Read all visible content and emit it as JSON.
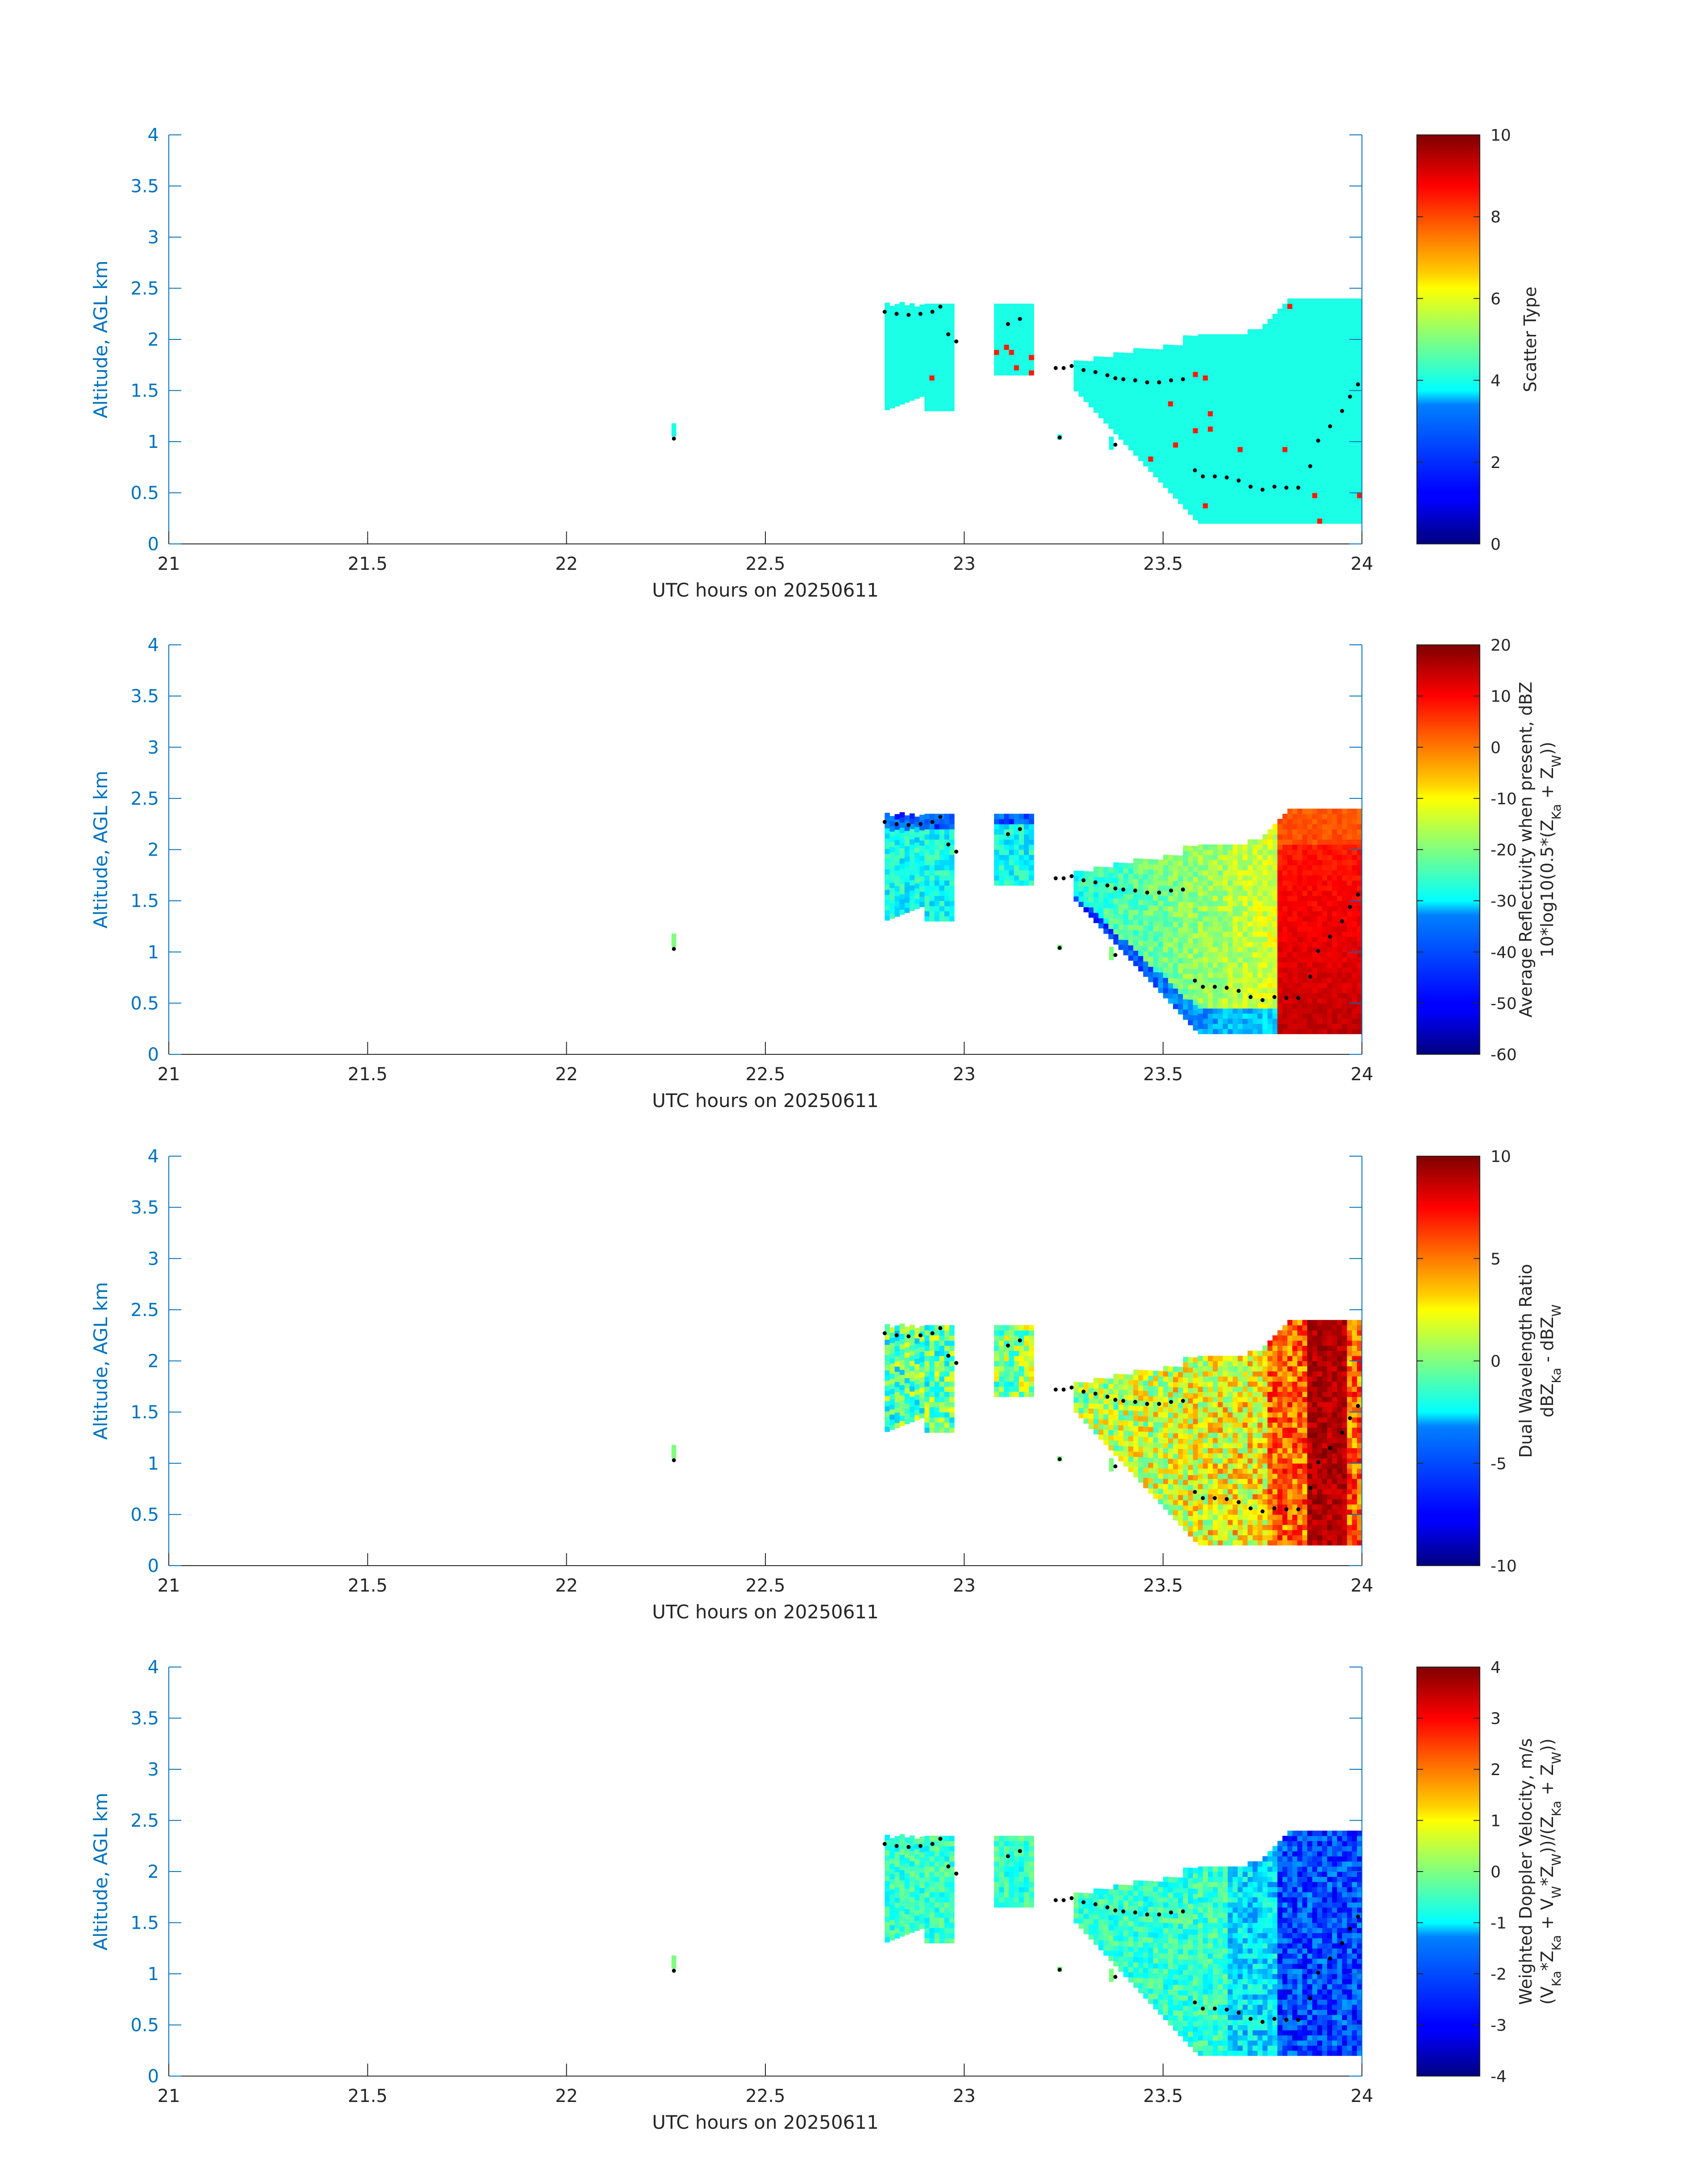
{
  "colors": {
    "axis_left": "#0072BD",
    "axis_right": "#0072BD",
    "text": "#262626",
    "height_markers": "#000000",
    "colormap": "jet"
  },
  "chart_data": [
    {
      "type": "heatmap",
      "xlabel": "UTC hours on 20250611",
      "ylabel": "Altitude, AGL km",
      "xlim": [
        21,
        24
      ],
      "ylim": [
        0,
        4
      ],
      "xticks": [
        "21",
        "21.5",
        "22",
        "22.5",
        "23",
        "23.5",
        "24"
      ],
      "yticks": [
        "0",
        "0.5",
        "1",
        "1.5",
        "2",
        "2.5",
        "3",
        "3.5",
        "4"
      ],
      "colorbar": {
        "label_lines": [
          "Scatter Type"
        ],
        "range": [
          0,
          10
        ],
        "ticks": [
          "0",
          "2",
          "4",
          "6",
          "8",
          "10"
        ]
      }
    },
    {
      "type": "heatmap",
      "xlabel": "UTC hours on 20250611",
      "ylabel": "Altitude, AGL km",
      "xlim": [
        21,
        24
      ],
      "ylim": [
        0,
        4
      ],
      "xticks": [
        "21",
        "21.5",
        "22",
        "22.5",
        "23",
        "23.5",
        "24"
      ],
      "yticks": [
        "0",
        "0.5",
        "1",
        "1.5",
        "2",
        "2.5",
        "3",
        "3.5",
        "4"
      ],
      "colorbar": {
        "label_lines": [
          "Average Reflectivity when present, dBZ",
          "10*log10(0.5*(Z_Ka + Z_W))"
        ],
        "range": [
          -60,
          20
        ],
        "ticks": [
          "-60",
          "-50",
          "-40",
          "-30",
          "-20",
          "-10",
          "0",
          "10",
          "20"
        ]
      }
    },
    {
      "type": "heatmap",
      "xlabel": "UTC hours on 20250611",
      "ylabel": "Altitude, AGL km",
      "xlim": [
        21,
        24
      ],
      "ylim": [
        0,
        4
      ],
      "xticks": [
        "21",
        "21.5",
        "22",
        "22.5",
        "23",
        "23.5",
        "24"
      ],
      "yticks": [
        "0",
        "0.5",
        "1",
        "1.5",
        "2",
        "2.5",
        "3",
        "3.5",
        "4"
      ],
      "colorbar": {
        "label_lines": [
          "Dual Wavelength Ratio",
          "dBZ_Ka - dBZ_W"
        ],
        "range": [
          -10,
          10
        ],
        "ticks": [
          "-10",
          "-5",
          "0",
          "5",
          "10"
        ]
      }
    },
    {
      "type": "heatmap",
      "xlabel": "UTC hours on 20250611",
      "ylabel": "Altitude, AGL km",
      "xlim": [
        21,
        24
      ],
      "ylim": [
        0,
        4
      ],
      "xticks": [
        "21",
        "21.5",
        "22",
        "22.5",
        "23",
        "23.5",
        "24"
      ],
      "yticks": [
        "0",
        "0.5",
        "1",
        "1.5",
        "2",
        "2.5",
        "3",
        "3.5",
        "4"
      ],
      "colorbar": {
        "label_lines": [
          "Weighted Doppler Velocity, m/s",
          "(V_Ka*Z_Ka + V_W*Z_W))/(Z_Ka + Z_W))"
        ],
        "range": [
          -4,
          4
        ],
        "ticks": [
          "-4",
          "-3",
          "-2",
          "-1",
          "0",
          "1",
          "2",
          "3",
          "4"
        ]
      }
    }
  ]
}
